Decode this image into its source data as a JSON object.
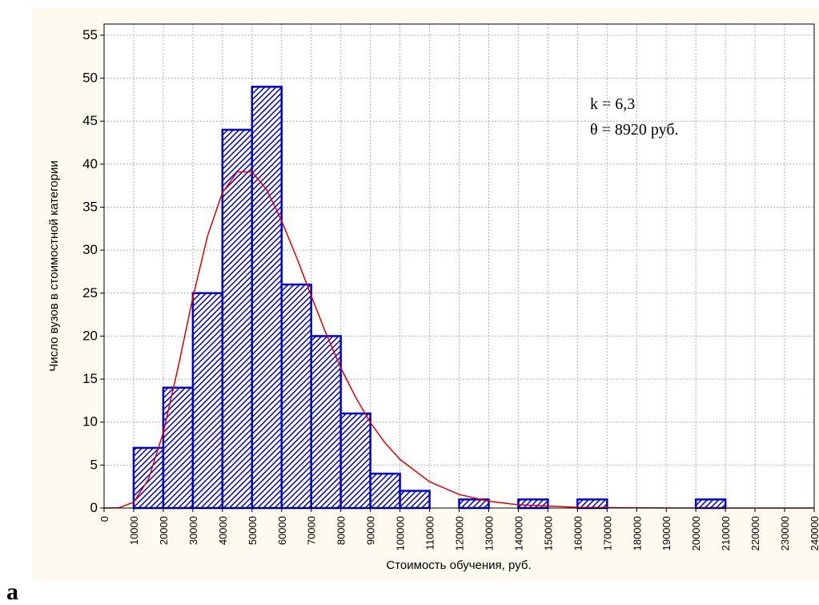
{
  "chart_data": {
    "type": "histogram",
    "xlabel": "Стоимость обучения, руб.",
    "ylabel": "Число вузов в стоимостной категории",
    "bins": [
      10000,
      20000,
      30000,
      40000,
      50000,
      60000,
      70000,
      80000,
      90000,
      100000,
      110000,
      120000,
      130000,
      140000,
      150000,
      160000,
      170000,
      180000,
      190000,
      200000,
      210000
    ],
    "values": [
      7,
      14,
      25,
      44,
      49,
      26,
      20,
      11,
      4,
      2,
      0,
      1,
      0,
      1,
      0,
      1,
      0,
      0,
      0,
      1
    ],
    "color": "#0000cc",
    "curve": {
      "color": "#e00000",
      "x": [
        0,
        5000,
        10000,
        15000,
        20000,
        25000,
        30000,
        35000,
        40000,
        45000,
        50000,
        55000,
        60000,
        65000,
        70000,
        75000,
        80000,
        85000,
        90000,
        95000,
        100000,
        110000,
        120000,
        130000,
        140000,
        160000,
        180000,
        200000,
        240000
      ],
      "values": [
        0,
        0.03,
        0.68,
        3.35,
        8.78,
        16.35,
        24.5,
        31.7,
        36.7,
        39.1,
        39.1,
        37.0,
        33.4,
        29.2,
        24.7,
        20.3,
        16.3,
        12.9,
        9.93,
        7.56,
        5.66,
        3.06,
        1.58,
        0.79,
        0.38,
        0.08,
        0.02,
        0,
        0
      ]
    },
    "annotations": [
      "k = 6,3",
      "θ = 8920 руб."
    ],
    "panel_label": "a",
    "xlim": [
      0,
      240000
    ],
    "ylim": [
      0,
      56.3
    ],
    "xticks": [
      0,
      10000,
      20000,
      30000,
      40000,
      50000,
      60000,
      70000,
      80000,
      90000,
      100000,
      110000,
      120000,
      130000,
      140000,
      150000,
      160000,
      170000,
      180000,
      190000,
      200000,
      210000,
      220000,
      230000,
      240000
    ],
    "yticks": [
      0,
      5,
      10,
      15,
      20,
      25,
      30,
      35,
      40,
      45,
      50,
      55
    ],
    "grid": true
  }
}
